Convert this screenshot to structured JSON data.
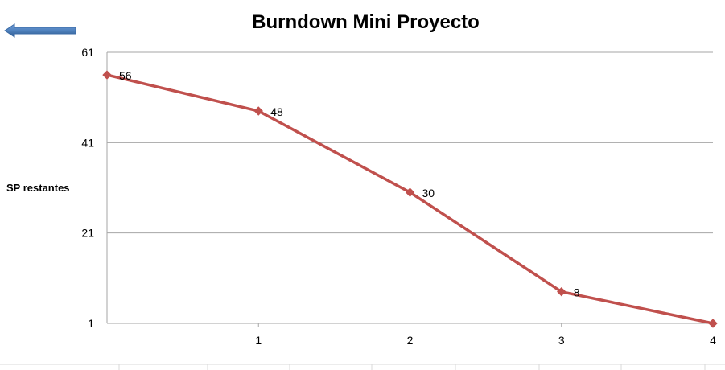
{
  "title": "Burndown Mini Proyecto",
  "back_arrow_icon": "arrow-left-icon",
  "colors": {
    "series": "#c0504d",
    "arrow": "#4f81bd",
    "grid": "#a6a6a6"
  },
  "chart_data": {
    "type": "line",
    "title": "Burndown Mini Proyecto",
    "xlabel": "",
    "ylabel": "SP restantes",
    "x": [
      0,
      1,
      2,
      3,
      4
    ],
    "x_ticks": [
      "1",
      "2",
      "3",
      "4"
    ],
    "y_ticks": [
      "61",
      "41",
      "21",
      "1"
    ],
    "xlim": [
      0,
      4
    ],
    "ylim": [
      1,
      61
    ],
    "grid": true,
    "legend": "none",
    "series": [
      {
        "values": [
          56,
          48,
          30,
          8,
          1
        ],
        "data_labels": [
          "56",
          "48",
          "30",
          "8",
          ""
        ]
      }
    ]
  }
}
